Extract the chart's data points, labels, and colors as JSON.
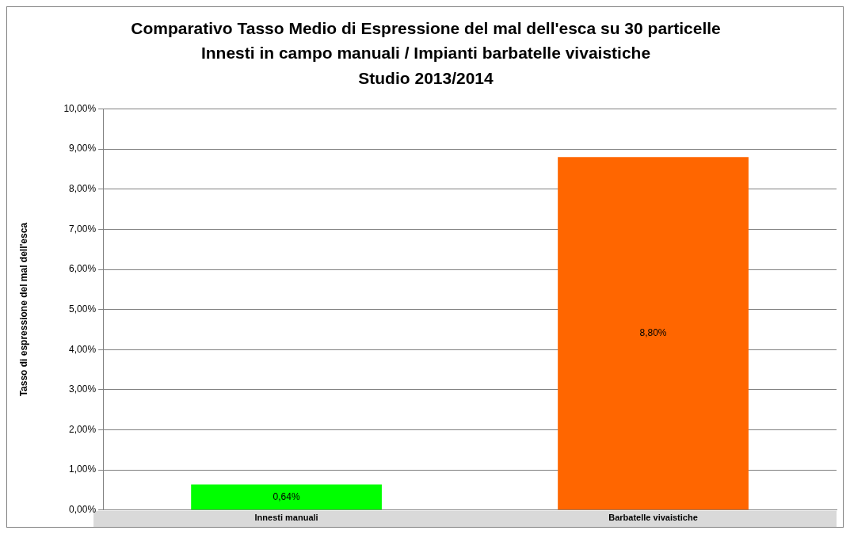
{
  "chart_data": {
    "type": "bar",
    "title": "Comparativo Tasso Medio di Espressione del mal dell'esca su 30 particelle",
    "subtitle": "Innesti in campo manuali / Impianti barbatelle vivaistiche\nStudio 2013/2014",
    "ylabel": "Tasso di espressione del mal dell'esca",
    "categories": [
      "Innesti manuali",
      "Barbatelle vivaistiche"
    ],
    "values": [
      0.64,
      8.8
    ],
    "colors": [
      "#00ff00",
      "#ff6600"
    ],
    "value_labels": [
      "0,64%",
      "8,80%"
    ],
    "ylim": [
      0,
      10
    ],
    "yticks": [
      {
        "value": 0,
        "label": "0,00%"
      },
      {
        "value": 1,
        "label": "1,00%"
      },
      {
        "value": 2,
        "label": "2,00%"
      },
      {
        "value": 3,
        "label": "3,00%"
      },
      {
        "value": 4,
        "label": "4,00%"
      },
      {
        "value": 5,
        "label": "5,00%"
      },
      {
        "value": 6,
        "label": "6,00%"
      },
      {
        "value": 7,
        "label": "7,00%"
      },
      {
        "value": 8,
        "label": "8,00%"
      },
      {
        "value": 9,
        "label": "9,00%"
      },
      {
        "value": 10,
        "label": "10,00%"
      }
    ],
    "grid": "y",
    "legend": false
  }
}
